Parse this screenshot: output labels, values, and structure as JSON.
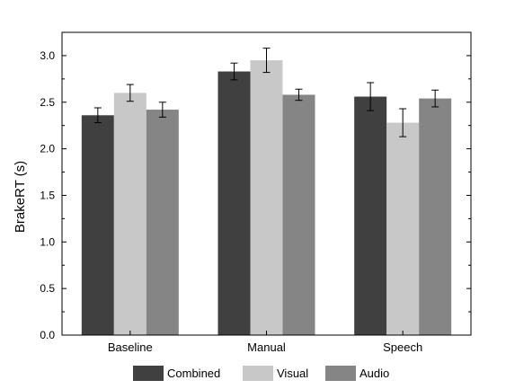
{
  "chart_data": {
    "type": "bar",
    "title": "",
    "xlabel": "",
    "ylabel": "BrakeRT (s)",
    "ylim": [
      0,
      3.25
    ],
    "yticks": [
      "0.0",
      "0.5",
      "1.0",
      "1.5",
      "2.0",
      "2.5",
      "3.0"
    ],
    "categories": [
      "Baseline",
      "Manual",
      "Speech"
    ],
    "grid": false,
    "legend_position": "bottom",
    "series": [
      {
        "name": "Combined",
        "color": "#404040",
        "values": [
          2.36,
          2.83,
          2.56
        ],
        "errors": [
          0.08,
          0.09,
          0.15
        ]
      },
      {
        "name": "Visual",
        "color": "#c8c8c8",
        "values": [
          2.6,
          2.95,
          2.28
        ],
        "errors": [
          0.09,
          0.13,
          0.15
        ]
      },
      {
        "name": "Audio",
        "color": "#858585",
        "values": [
          2.42,
          2.58,
          2.54
        ],
        "errors": [
          0.08,
          0.06,
          0.09
        ]
      }
    ]
  }
}
